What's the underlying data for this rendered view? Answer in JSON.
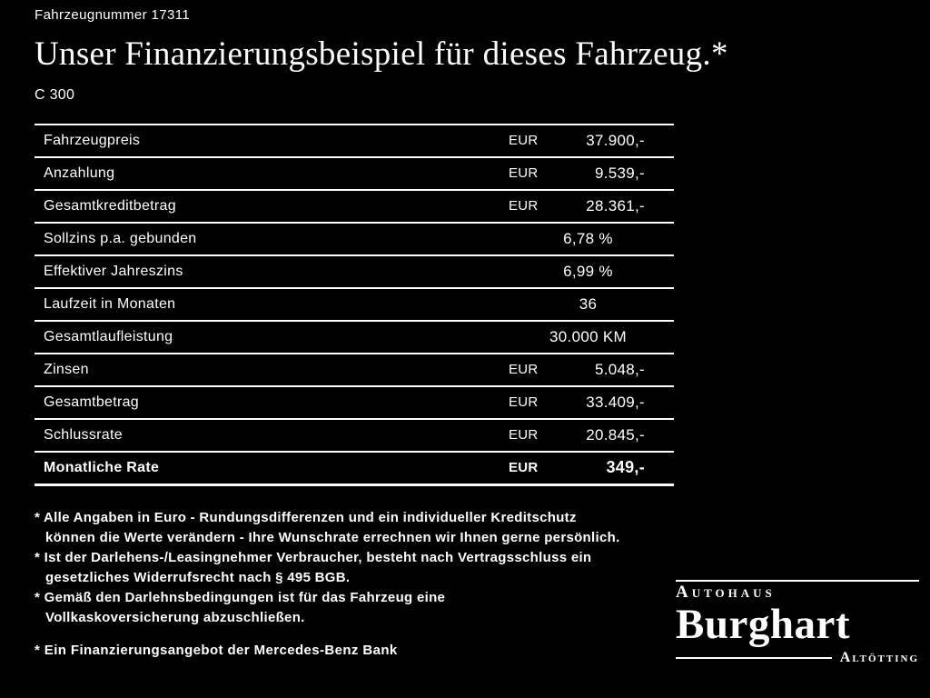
{
  "header": {
    "vehicle_number": "Fahrzeugnummer 17311",
    "title": "Unser Finanzierungsbeispiel für dieses Fahrzeug.*",
    "model": "C 300"
  },
  "table": {
    "rows": [
      {
        "label": "Fahrzeugpreis",
        "currency": "EUR",
        "value": "37.900,-",
        "bold": false
      },
      {
        "label": "Anzahlung",
        "currency": "EUR",
        "value": "9.539,-",
        "bold": false
      },
      {
        "label": "Gesamtkreditbetrag",
        "currency": "EUR",
        "value": "28.361,-",
        "bold": false
      },
      {
        "label": "Sollzins p.a. gebunden",
        "currency": "",
        "value": "6,78 %",
        "bold": false
      },
      {
        "label": "Effektiver Jahreszins",
        "currency": "",
        "value": "6,99 %",
        "bold": false
      },
      {
        "label": "Laufzeit in Monaten",
        "currency": "",
        "value": "36",
        "bold": false
      },
      {
        "label": "Gesamtlaufleistung",
        "currency": "",
        "value": "30.000 KM",
        "bold": false
      },
      {
        "label": "Zinsen",
        "currency": "EUR",
        "value": "5.048,-",
        "bold": false
      },
      {
        "label": "Gesamtbetrag",
        "currency": "EUR",
        "value": "33.409,-",
        "bold": false
      },
      {
        "label": "Schlussrate",
        "currency": "EUR",
        "value": "20.845,-",
        "bold": false
      },
      {
        "label": "Monatliche Rate",
        "currency": "EUR",
        "value": "349,-",
        "bold": true
      }
    ]
  },
  "footnotes": [
    "* Alle Angaben in Euro - Rundungsdifferenzen und ein individueller Kreditschutz\nkönnen die Werte verändern - Ihre Wunschrate errechnen wir Ihnen gerne persönlich.",
    "* Ist der Darlehens-/Leasingnehmer Verbraucher, besteht nach Vertragsschluss ein\ngesetzliches Widerrufsrecht nach § 495 BGB.",
    "* Gemäß den Darlehnsbedingungen ist für das Fahrzeug eine\nVollkaskoversicherung abzuschließen."
  ],
  "bank_note": "* Ein Finanzierungsangebot der Mercedes-Benz Bank",
  "dealer": {
    "type": "Autohaus",
    "name": "Burghart",
    "city": "Altötting"
  },
  "colors": {
    "background": "#000000",
    "text": "#ffffff"
  }
}
